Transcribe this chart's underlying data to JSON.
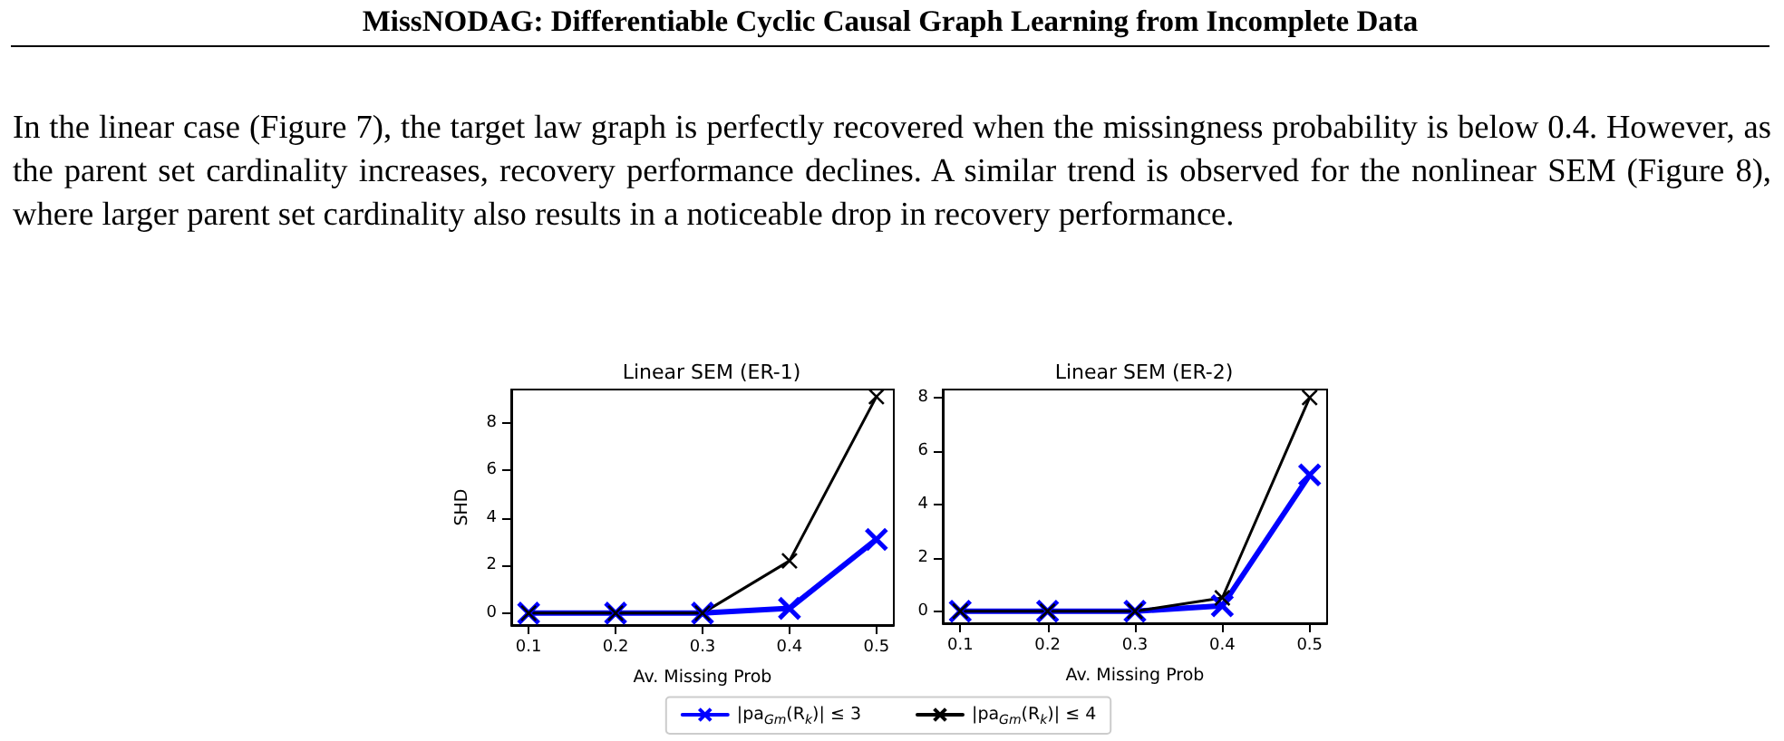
{
  "chart_data": [
    {
      "type": "line",
      "title": "Linear SEM (ER-1)",
      "xlabel": "Av. Missing Prob",
      "ylabel": "SHD",
      "annotations": [
        "MissNODAG: Differentiable Cyclic Causal Graph Learning from Incomplete Data",
        "In the linear case (Figure 7), the target law graph is perfectly recovered when the missingness probability is below 0.4. However, as the parent set cardinality increases, recovery performance declines. A similar trend is observed for the nonlinear SEM (Figure 8), where larger parent set cardinality also results in a noticeable drop in recovery performance."
      ],
      "x": [
        0.1,
        0.2,
        0.3,
        0.4,
        0.5
      ],
      "series": [
        {
          "name": "|pa$_{Gm}$(R$_{k}$)| ≤ 3",
          "color": "#0000ff",
          "values": [
            0,
            0,
            0,
            0.2,
            3.1
          ]
        },
        {
          "name": "|pa$_{Gm}$(R$_{k}$)| ≤ 4",
          "color": "#000000",
          "values": [
            0,
            0,
            0,
            2.2,
            9.1
          ]
        }
      ],
      "xlim": [
        0.08,
        0.52
      ],
      "xticks": [
        0.1,
        0.2,
        0.3,
        0.4,
        0.5
      ],
      "ylim": [
        -0.5,
        9.4
      ],
      "yticks": [
        0,
        2,
        4,
        6,
        8
      ],
      "grid": false,
      "legend": "bottom",
      "marker": "cross",
      "line_style": "solid"
    },
    {
      "type": "line",
      "title": "Linear SEM (ER-2)",
      "xlabel": "Av. Missing Prob",
      "x": [
        0.1,
        0.2,
        0.3,
        0.4,
        0.5
      ],
      "series": [
        {
          "color": "#0000ff",
          "values": [
            0,
            0,
            0,
            0.2,
            5.1
          ]
        },
        {
          "color": "#000000",
          "values": [
            0,
            0,
            0,
            0.5,
            8.0
          ]
        }
      ],
      "xlim": [
        0.08,
        0.52
      ],
      "xticks": [
        0.1,
        0.2,
        0.3,
        0.4,
        0.5
      ],
      "ylim": [
        -0.45,
        8.3
      ],
      "yticks": [
        0,
        2,
        4,
        6,
        8
      ],
      "grid": false,
      "marker": "cross",
      "line_style": "solid"
    }
  ]
}
